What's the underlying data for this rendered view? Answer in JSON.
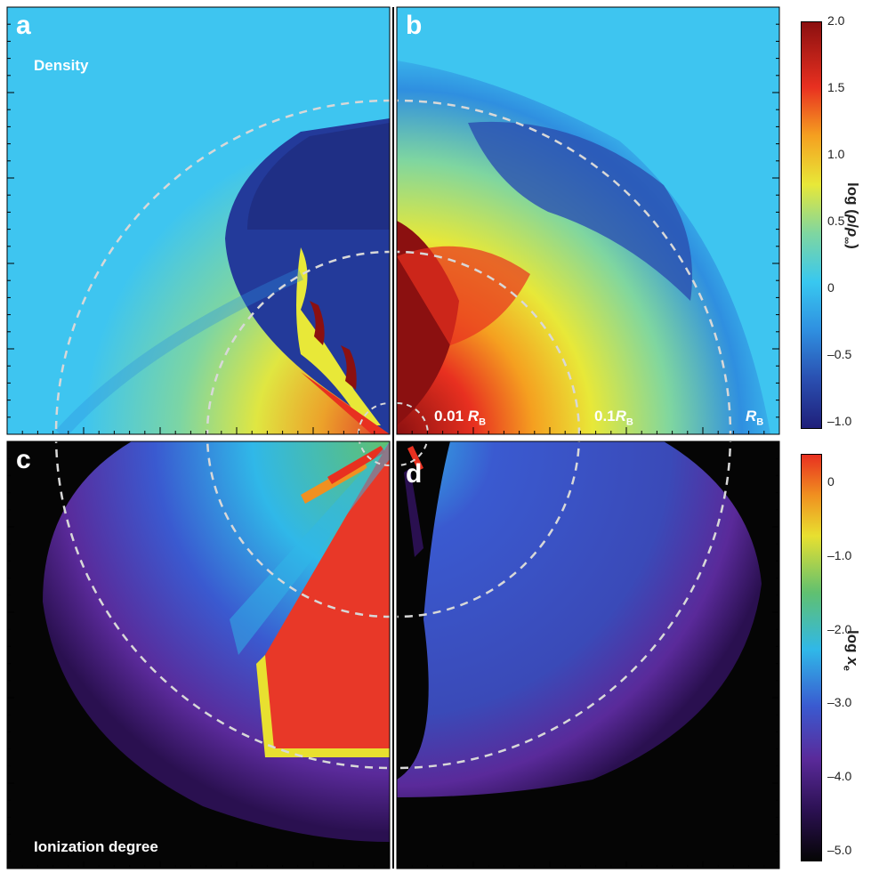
{
  "panels": {
    "a": {
      "letter": "a",
      "title": "Density"
    },
    "b": {
      "letter": "b"
    },
    "c": {
      "letter": "c",
      "title": "Ionization degree"
    },
    "d": {
      "letter": "d"
    }
  },
  "radius_labels": {
    "r1": {
      "value": "0.01 ",
      "sym": "R",
      "sub": "B"
    },
    "r2": {
      "value": "0.1",
      "sym": "R",
      "sub": "B"
    },
    "r3": {
      "value": "",
      "sym": "R",
      "sub": "B"
    }
  },
  "colorbars": {
    "density": {
      "title_prefix": "log (",
      "title_rho": "ρ",
      "title_slash": "/",
      "title_rho_inf": "ρ",
      "title_inf": "∞",
      "title_suffix": ")",
      "ticks": [
        "2.0",
        "1.5",
        "1.0",
        "0.5",
        "0",
        "–0.5",
        "–1.0"
      ],
      "range": [
        -1.0,
        2.0
      ]
    },
    "ionization": {
      "title_prefix": "log ",
      "title_x": "x",
      "title_sub": "e",
      "ticks": [
        "0",
        "–1.0",
        "–2.0",
        "–3.0",
        "–4.0",
        "–5.0"
      ],
      "range": [
        -5.0,
        0.2
      ]
    }
  },
  "colors": {
    "jet": [
      "#1f1f7a",
      "#2a4fb0",
      "#2f8fe0",
      "#38c8f0",
      "#7fd6a0",
      "#e8e838",
      "#f5a020",
      "#e83020",
      "#8b1010"
    ],
    "ion": [
      "#050505",
      "#2a1050",
      "#5a2a9a",
      "#3a5ad0",
      "#30b8e8",
      "#60c070",
      "#e8e030",
      "#f09020",
      "#e83020"
    ],
    "background_density": "#3ec5f0",
    "background_ion": "#050505",
    "dashed_circle": "#d8d8d8"
  }
}
